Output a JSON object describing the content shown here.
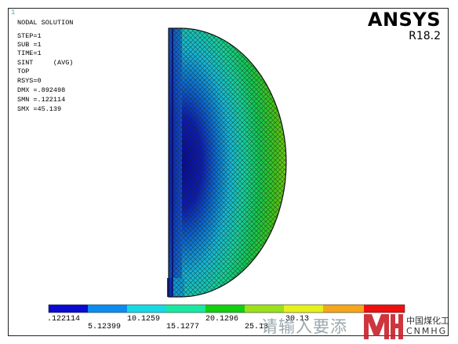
{
  "window_number": "1",
  "title": "NODAL SOLUTION",
  "info_lines": [
    "STEP=1",
    "SUB =1",
    "TIME=1",
    "SINT     (AVG)",
    "TOP",
    "RSYS=0",
    "DMX =.892498",
    "SMN =.122114",
    "SMX =45.139"
  ],
  "brand": {
    "name": "ANSYS",
    "version": "R18.2"
  },
  "legend": {
    "colors": [
      "#0a0ad2",
      "#0c8cf0",
      "#16d9e6",
      "#18e8a0",
      "#10d010",
      "#9be11a",
      "#e6f01a",
      "#f5a61a",
      "#ee1010"
    ],
    "top_labels": [
      ".122114",
      "10.1259",
      "20.1296",
      "30.13"
    ],
    "bottom_labels": [
      "5.12399",
      "15.1277",
      "25.13"
    ]
  },
  "watermark": {
    "text": "请输入要添",
    "logo_cn": "中国煤化工",
    "logo_en": "CNMHG"
  }
}
